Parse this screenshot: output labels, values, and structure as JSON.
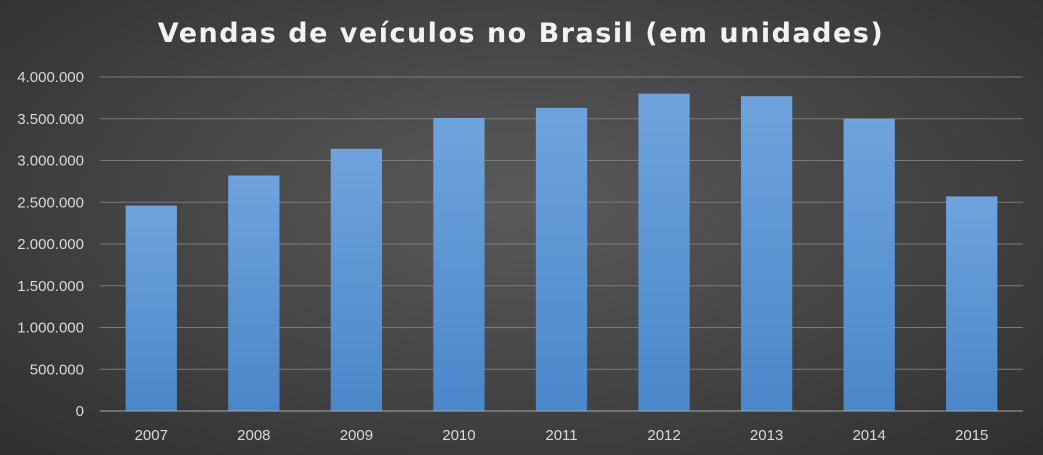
{
  "chart_data": {
    "type": "bar",
    "title": "Vendas de veículos no Brasil (em unidades)",
    "xlabel": "",
    "ylabel": "",
    "categories": [
      "2007",
      "2008",
      "2009",
      "2010",
      "2011",
      "2012",
      "2013",
      "2014",
      "2015"
    ],
    "values": [
      2460000,
      2820000,
      3140000,
      3510000,
      3630000,
      3800000,
      3770000,
      3500000,
      2570000
    ],
    "ylim": [
      0,
      4000000
    ],
    "yticks": [
      0,
      500000,
      1000000,
      1500000,
      2000000,
      2500000,
      3000000,
      3500000,
      4000000
    ],
    "ytick_labels": [
      "0",
      "500.000",
      "1.000.000",
      "1.500.000",
      "2.000.000",
      "2.500.000",
      "3.000.000",
      "3.500.000",
      "4.000.000"
    ],
    "grid": true,
    "legend": "none",
    "colors": {
      "bar_top": "#6fa3dd",
      "bar_bottom": "#4a87c9",
      "background": "#474747"
    }
  }
}
